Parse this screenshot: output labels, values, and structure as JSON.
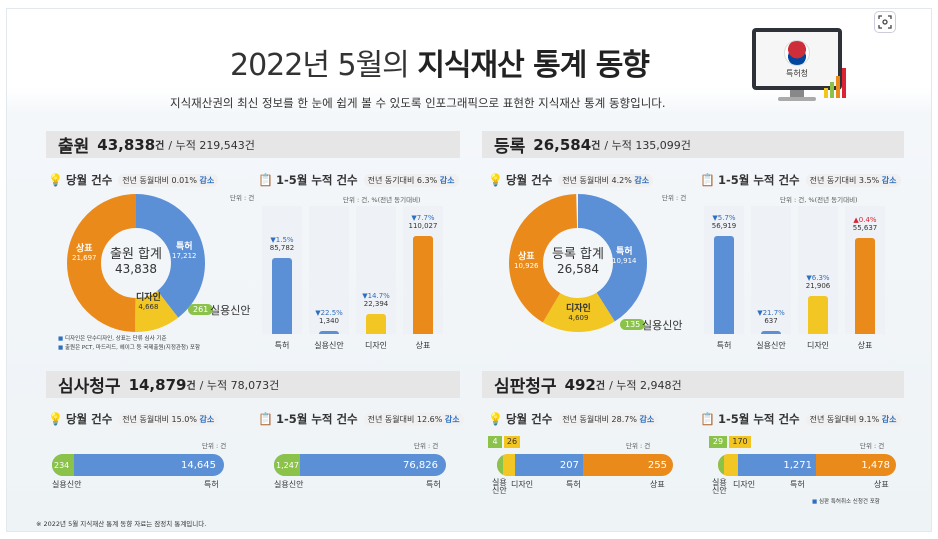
{
  "title_prefix": "2022년 5월의 ",
  "title_bold": "지식재산 통계 동향",
  "subtitle": "지식재산권의 최신 정보를 한 눈에 쉽게 볼 수 있도록 인포그래픽으로 표현한 지식재산 통계 동향입니다.",
  "logo_text": "특허청",
  "colors": {
    "blue": "#5b8fd6",
    "orange": "#e98a1a",
    "yellow": "#f2c623",
    "green": "#8bc34a"
  },
  "filing": {
    "title": "출원",
    "total": "43,838",
    "unit": "건",
    "cum": "/ 누적 219,543건",
    "month_label": "당월 건수",
    "month_tag_pre": "전년 동월대비 0.01% ",
    "month_tag_dir": "감소",
    "cum_label": "1-5월 누적 건수",
    "cum_tag_pre": "전년 동기대비 6.3% ",
    "cum_tag_dir": "감소",
    "unit_label": "단위 : 건",
    "unit_label2": "단위 : 건, %(전년 동기대비)",
    "center_a": "출원 합계",
    "center_b": "43,838",
    "slices": [
      {
        "name": "특허",
        "value": "17,212"
      },
      {
        "name": "상표",
        "value": "21,697"
      },
      {
        "name": "디자인",
        "value": "4,668"
      }
    ],
    "pill": "261",
    "pill_txt": "실용신안",
    "notes": [
      "디자인은 단수디자인, 상표는 단류 심사 기준",
      "출원은 PCT, 마드리드, 헤이그 등 국제출원(지정관청) 포함"
    ],
    "chart_data": {
      "type": "bar",
      "categories": [
        "특허",
        "실용신안",
        "디자인",
        "상표"
      ],
      "values": [
        85782,
        1340,
        22394,
        110027
      ],
      "value_labels": [
        "85,782",
        "1,340",
        "22,394",
        "110,027"
      ],
      "changes": [
        "▼1.5%",
        "▼22.5%",
        "▼14.7%",
        "▼7.7%"
      ]
    }
  },
  "registration": {
    "title": "등록",
    "total": "26,584",
    "unit": "건",
    "cum": "/ 누적 135,099건",
    "month_label": "당월 건수",
    "month_tag_pre": "전년 동월대비 4.2% ",
    "month_tag_dir": "감소",
    "cum_label": "1-5월 누적 건수",
    "cum_tag_pre": "전년 동기대비 3.5% ",
    "cum_tag_dir": "감소",
    "unit_label": "단위 : 건",
    "unit_label2": "단위 : 건, %(전년 동기대비)",
    "center_a": "등록 합계",
    "center_b": "26,584",
    "slices": [
      {
        "name": "특허",
        "value": "10,914"
      },
      {
        "name": "상표",
        "value": "10,926"
      },
      {
        "name": "디자인",
        "value": "4,609"
      }
    ],
    "pill": "135",
    "pill_txt": "실용신안",
    "chart_data": {
      "type": "bar",
      "categories": [
        "특허",
        "실용신안",
        "디자인",
        "상표"
      ],
      "values": [
        56919,
        637,
        21906,
        55637
      ],
      "value_labels": [
        "56,919",
        "637",
        "21,906",
        "55,637"
      ],
      "changes": [
        "▼5.7%",
        "▼21.7%",
        "▼6.3%",
        "▲0.4%"
      ]
    }
  },
  "exam": {
    "title": "심사청구",
    "total": "14,879",
    "unit": "건",
    "cum": "/ 누적 78,073건",
    "month_label": "당월 건수",
    "month_tag_pre": "전년 동월대비 15.0% ",
    "month_tag_dir": "감소",
    "cum_label": "1-5월 누적 건수",
    "cum_tag_pre": "전년 동월대비 12.6% ",
    "cum_tag_dir": "감소",
    "unit_label": "단위 : 건",
    "month": {
      "a": "234",
      "b": "14,645",
      "la": "실용신안",
      "lb": "특허"
    },
    "cumv": {
      "a": "1,247",
      "b": "76,826",
      "la": "실용신안",
      "lb": "특허"
    }
  },
  "trial": {
    "title": "심판청구",
    "total": "492",
    "unit": "건",
    "cum": "/ 누적 2,948건",
    "month_label": "당월 건수",
    "month_tag_pre": "전년 동월대비 28.7% ",
    "month_tag_dir": "감소",
    "cum_label": "1-5월 누적 건수",
    "cum_tag_pre": "전년 동월대비 9.1% ",
    "cum_tag_dir": "감소",
    "unit_label": "단위 : 건",
    "month": {
      "g": "4",
      "y": "26",
      "p": "207",
      "t": "255",
      "lg": "실용\n신안",
      "ly": "디자인",
      "lp": "특허",
      "lt": "상표"
    },
    "cumv": {
      "g": "29",
      "y": "170",
      "p": "1,271",
      "t": "1,478",
      "lg": "실용\n신안",
      "ly": "디자인",
      "lp": "특허",
      "lt": "상표"
    },
    "legend": "심판 특허취소 신청건 포함"
  },
  "footnote": "※ 2022년 5월 지식재산 통계 동향 자료는 잠정치 통계입니다."
}
